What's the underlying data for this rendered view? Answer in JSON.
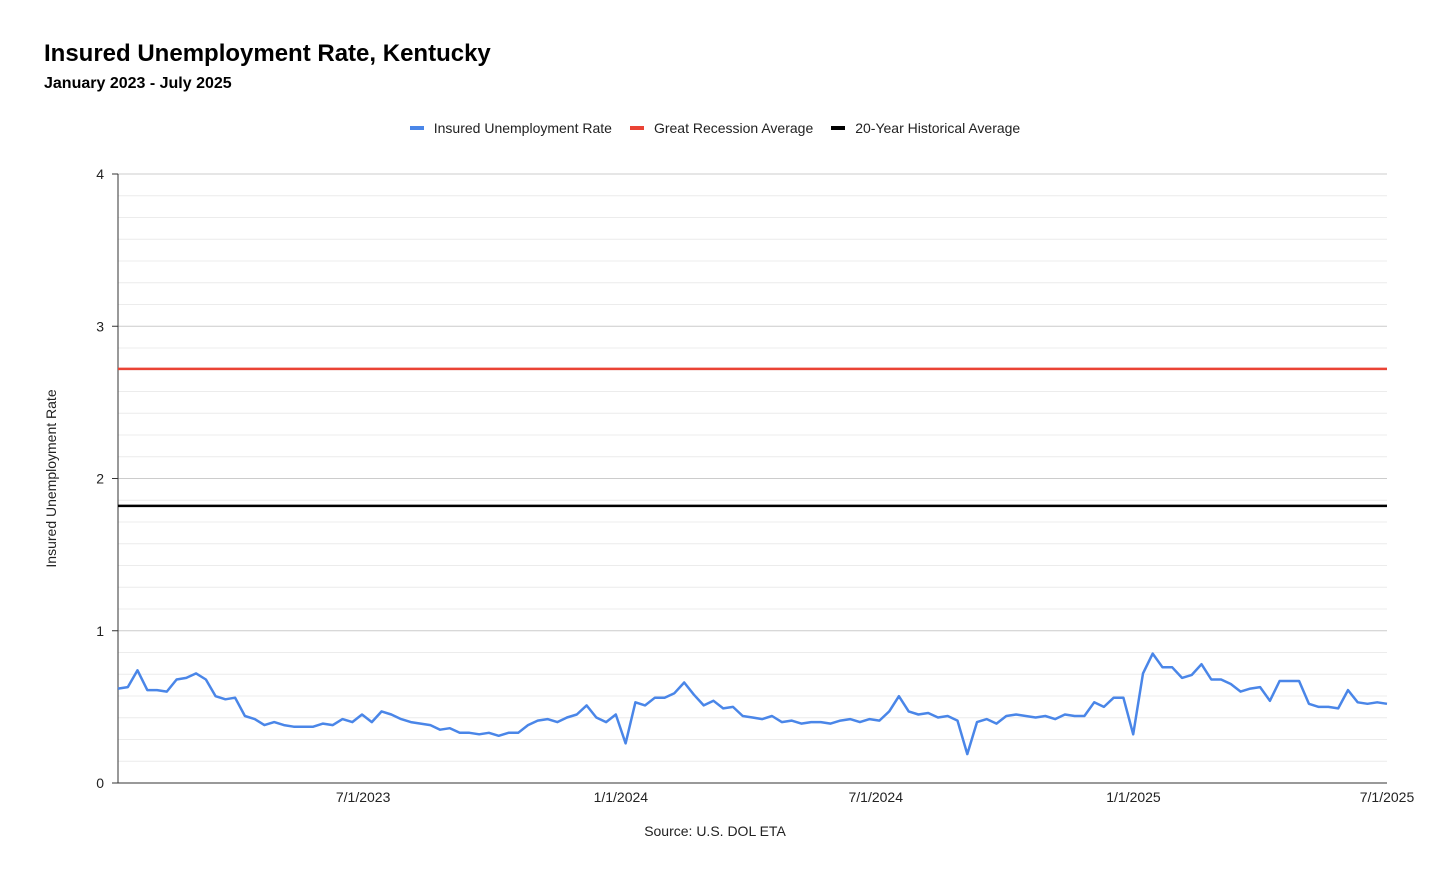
{
  "chart_data": {
    "type": "line",
    "title": "Insured Unemployment Rate, Kentucky",
    "subtitle": "January 2023 - July 2025",
    "xlabel": "",
    "ylabel": "Insured Unemployment Rate",
    "source": "Source: U.S. DOL ETA",
    "ylim": [
      0,
      4
    ],
    "yticks": [
      "0",
      "1",
      "2",
      "3",
      "4"
    ],
    "xticks": [
      "7/1/2023",
      "1/1/2024",
      "7/1/2024",
      "1/1/2025",
      "7/1/2025"
    ],
    "grid": true,
    "legend_position": "top-center",
    "x_start": "1/7/2023",
    "x_end": "7/1/2025",
    "series": [
      {
        "name": "Insured Unemployment Rate",
        "color": "#4a86e8",
        "values": [
          0.62,
          0.63,
          0.74,
          0.61,
          0.61,
          0.6,
          0.68,
          0.69,
          0.72,
          0.68,
          0.57,
          0.55,
          0.56,
          0.44,
          0.42,
          0.38,
          0.4,
          0.38,
          0.37,
          0.37,
          0.37,
          0.39,
          0.38,
          0.42,
          0.4,
          0.45,
          0.4,
          0.47,
          0.45,
          0.42,
          0.4,
          0.39,
          0.38,
          0.35,
          0.36,
          0.33,
          0.33,
          0.32,
          0.33,
          0.31,
          0.33,
          0.33,
          0.38,
          0.41,
          0.42,
          0.4,
          0.43,
          0.45,
          0.51,
          0.43,
          0.4,
          0.45,
          0.26,
          0.53,
          0.51,
          0.56,
          0.56,
          0.59,
          0.66,
          0.58,
          0.51,
          0.54,
          0.49,
          0.5,
          0.44,
          0.43,
          0.42,
          0.44,
          0.4,
          0.41,
          0.39,
          0.4,
          0.4,
          0.39,
          0.41,
          0.42,
          0.4,
          0.42,
          0.41,
          0.47,
          0.57,
          0.47,
          0.45,
          0.46,
          0.43,
          0.44,
          0.41,
          0.19,
          0.4,
          0.42,
          0.39,
          0.44,
          0.45,
          0.44,
          0.43,
          0.44,
          0.42,
          0.45,
          0.44,
          0.44,
          0.53,
          0.5,
          0.56,
          0.56,
          0.32,
          0.72,
          0.85,
          0.76,
          0.76,
          0.69,
          0.71,
          0.78,
          0.68,
          0.68,
          0.65,
          0.6,
          0.62,
          0.63,
          0.54,
          0.67,
          0.67,
          0.67,
          0.52,
          0.5,
          0.5,
          0.49,
          0.61,
          0.53,
          0.52,
          0.53,
          0.52
        ]
      },
      {
        "name": "Great Recession Average",
        "color": "#ea4335",
        "values": [
          2.72
        ]
      },
      {
        "name": "20-Year Historical Average",
        "color": "#000000",
        "values": [
          1.82
        ]
      }
    ]
  }
}
